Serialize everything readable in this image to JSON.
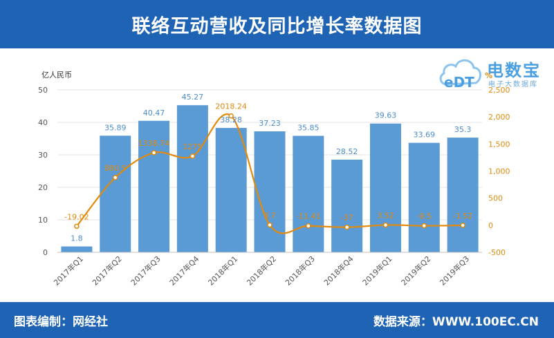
{
  "header": {
    "title": "联络互动营收及同比增长率数据图"
  },
  "footer": {
    "left": "图表编制：网经社",
    "right": "数据来源：WWW.100EC.CN"
  },
  "logo": {
    "name": "电数宝",
    "sub": "电子大数据库",
    "mark_text": "eDT"
  },
  "colors": {
    "bar": "#5b9bd5",
    "line": "#e28a0c",
    "header": "#1f64b4"
  },
  "chart_data": {
    "type": "bar",
    "categories": [
      "2017年Q1",
      "2017年Q2",
      "2017年Q3",
      "2017年Q4",
      "2018年Q1",
      "2018年Q2",
      "2018年Q3",
      "2018年Q4",
      "2019年Q1",
      "2019年Q2",
      "2019年Q3"
    ],
    "series": [
      {
        "type": "bar",
        "axis": "left",
        "values": [
          1.8,
          35.89,
          40.47,
          45.27,
          38.28,
          37.23,
          35.85,
          28.52,
          39.63,
          33.69,
          35.3
        ],
        "labels": [
          "1.8",
          "35.89",
          "40.47",
          "45.27",
          "38.28",
          "37.23",
          "35.85",
          "28.52",
          "39.63",
          "33.69",
          "35.3"
        ]
      },
      {
        "type": "line",
        "axis": "right",
        "values": [
          -19.02,
          880.5,
          1338.74,
          1275.3,
          2018.24,
          3.7,
          -11.41,
          -37,
          3.52,
          -9.5,
          -1.52
        ],
        "labels": [
          "-19.02",
          "880.5",
          "1338.74",
          "1275",
          "2018.24",
          "3.7",
          "-11.41",
          "-37",
          "3.52",
          "-9.5",
          "-1.52"
        ]
      }
    ],
    "ylabel": "亿人民币",
    "ylabel_right": "%",
    "ylim": [
      0,
      50
    ],
    "yticks": [
      "0",
      "10",
      "20",
      "30",
      "40",
      "50"
    ],
    "ylim_right": [
      -500,
      2500
    ],
    "yticks_right": [
      "-500",
      "0",
      "500",
      "1,000",
      "1,500",
      "2,000",
      "2,500"
    ],
    "grid": true
  }
}
